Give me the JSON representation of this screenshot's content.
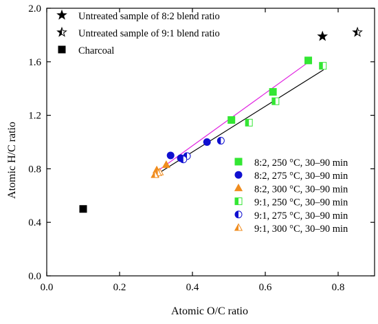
{
  "chart_data": {
    "type": "scatter",
    "title": "",
    "xlabel": "Atomic O/C ratio",
    "ylabel": "Atomic H/C ratio",
    "xlim": [
      0.0,
      0.9
    ],
    "ylim": [
      0.0,
      2.0
    ],
    "xticks": [
      0.0,
      0.2,
      0.4,
      0.6,
      0.8
    ],
    "yticks": [
      0.0,
      0.4,
      0.8,
      1.2,
      1.6,
      2.0
    ],
    "xtick_labels": [
      "0.0",
      "0.2",
      "0.4",
      "0.6",
      "0.8"
    ],
    "ytick_labels": [
      "0.0",
      "0.4",
      "0.8",
      "1.2",
      "1.6",
      "2.0"
    ],
    "grid": false,
    "legend_top": [
      {
        "label": "Untreated sample of 8:2 blend ratio",
        "marker": "star-filled"
      },
      {
        "label": "Untreated sample of 9:1 blend ratio",
        "marker": "star-half"
      },
      {
        "label": "Charcoal",
        "marker": "square-filled"
      }
    ],
    "legend_bottom": [
      {
        "label": "8:2, 250 °C, 30–90 min",
        "marker": "square",
        "fill": "full",
        "color": "#33e633"
      },
      {
        "label": "8:2, 275 °C, 30–90 min",
        "marker": "circle",
        "fill": "full",
        "color": "#1010d0"
      },
      {
        "label": "8:2, 300 °C, 30–90 min",
        "marker": "triangle",
        "fill": "full",
        "color": "#f08c1e"
      },
      {
        "label": "9:1, 250 °C, 30–90 min",
        "marker": "square",
        "fill": "half",
        "color": "#33e633"
      },
      {
        "label": "9:1, 275 °C, 30–90 min",
        "marker": "circle",
        "fill": "half",
        "color": "#1010d0"
      },
      {
        "label": "9:1, 300 °C, 30–90 min",
        "marker": "triangle",
        "fill": "half",
        "color": "#f08c1e"
      }
    ],
    "series": [
      {
        "marker": "star-filled",
        "color": "#000000",
        "x": [
          0.757
        ],
        "y": [
          1.79
        ]
      },
      {
        "marker": "star-half",
        "color": "#000000",
        "x": [
          0.853
        ],
        "y": [
          1.82
        ]
      },
      {
        "marker": "square-filled",
        "color": "#000000",
        "x": [
          0.1
        ],
        "y": [
          0.5
        ]
      },
      {
        "marker": "square",
        "fill": "full",
        "color": "#33e633",
        "x": [
          0.718,
          0.621,
          0.507
        ],
        "y": [
          1.61,
          1.375,
          1.165
        ]
      },
      {
        "marker": "circle",
        "fill": "full",
        "color": "#1010d0",
        "x": [
          0.44,
          0.34,
          0.368
        ],
        "y": [
          1.0,
          0.9,
          0.88
        ]
      },
      {
        "marker": "triangle",
        "fill": "full",
        "color": "#f08c1e",
        "x": [
          0.328,
          0.302,
          0.298
        ],
        "y": [
          0.83,
          0.79,
          0.76
        ]
      },
      {
        "marker": "square",
        "fill": "half",
        "color": "#33e633",
        "x": [
          0.758,
          0.628,
          0.555
        ],
        "y": [
          1.57,
          1.305,
          1.145
        ]
      },
      {
        "marker": "circle",
        "fill": "half",
        "color": "#1010d0",
        "x": [
          0.478,
          0.385,
          0.375
        ],
        "y": [
          1.01,
          0.895,
          0.87
        ]
      },
      {
        "marker": "triangle",
        "fill": "half",
        "color": "#f08c1e",
        "x": [
          0.31,
          0.305,
          0.297
        ],
        "y": [
          0.775,
          0.77,
          0.755
        ]
      }
    ],
    "fit_lines": [
      {
        "color": "#e020e0",
        "x": [
          0.297,
          0.72
        ],
        "y": [
          0.77,
          1.6
        ]
      },
      {
        "color": "#000000",
        "x": [
          0.297,
          0.76
        ],
        "y": [
          0.75,
          1.54
        ]
      }
    ]
  }
}
